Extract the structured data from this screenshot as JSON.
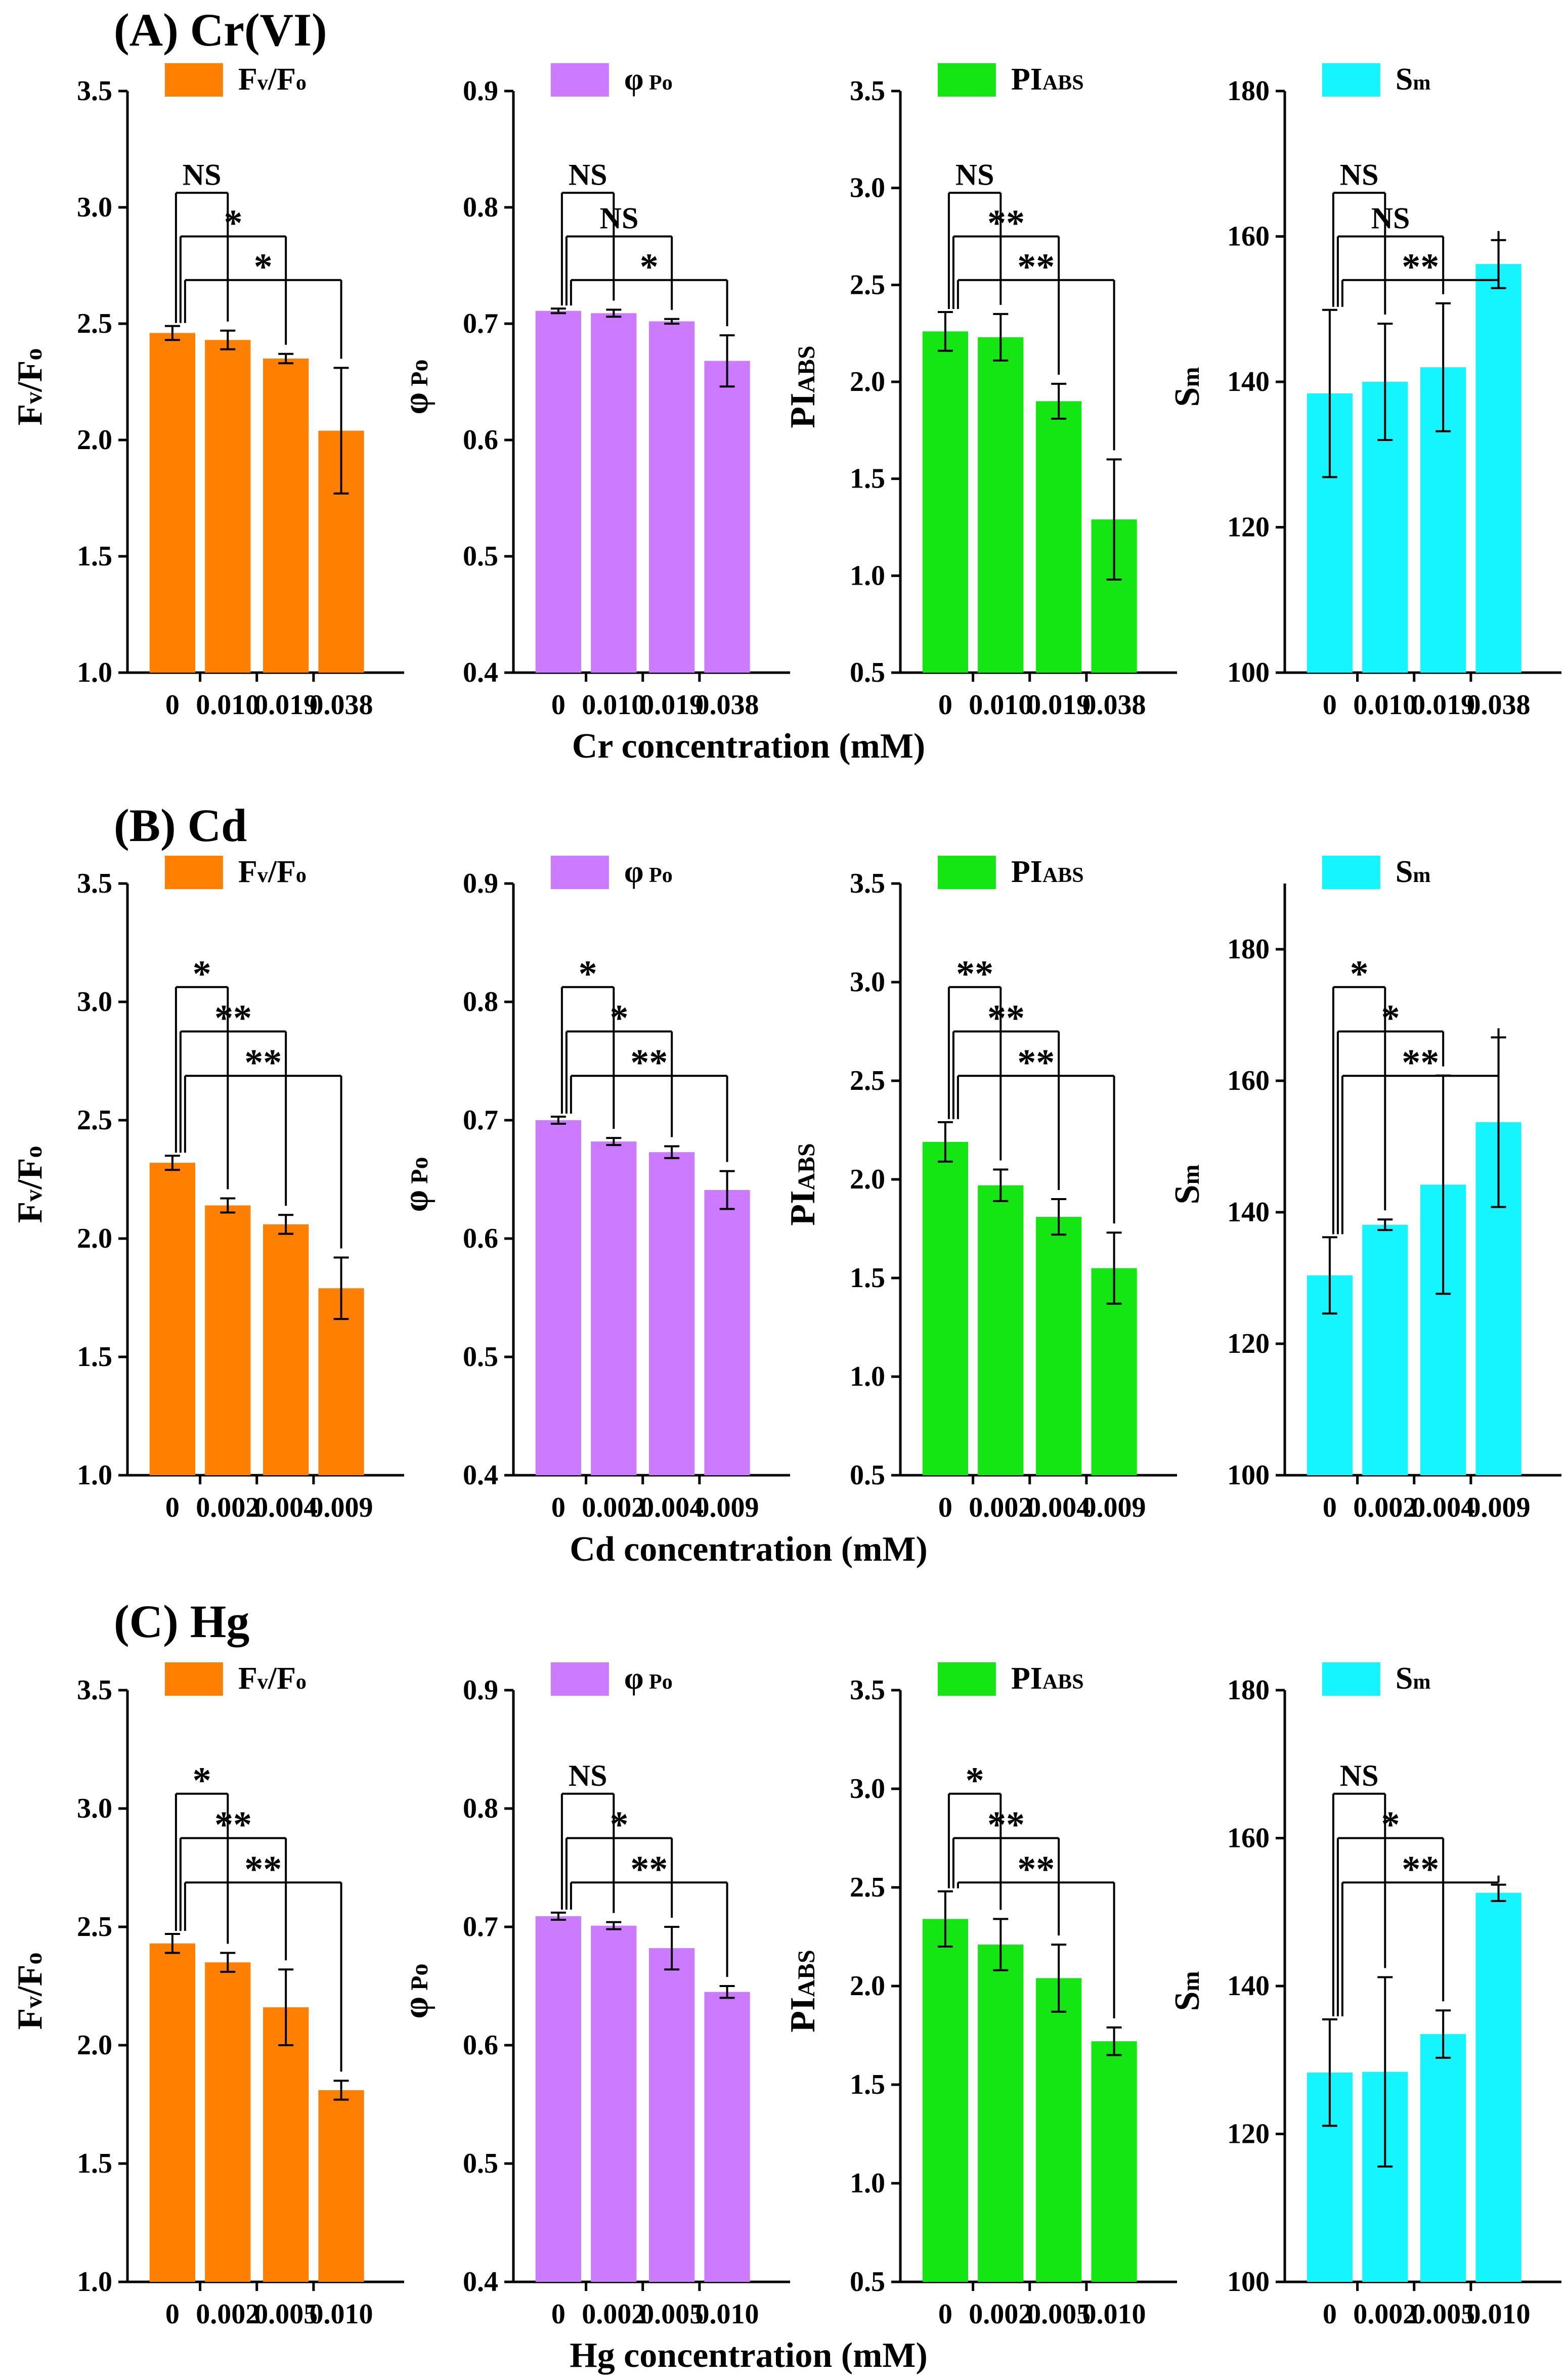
{
  "colors": {
    "fvfo": "#FF7F00",
    "phipo": "#CC7AFF",
    "piabs": "#14E614",
    "sm": "#14F5FF",
    "ink": "#000000"
  },
  "rows": [
    {
      "title": "(A) Cr(VI)",
      "xlabel": "Cr concentration (mM)",
      "categories": [
        "0",
        "0.010",
        "0.019",
        "0.038"
      ]
    },
    {
      "title": "(B) Cd",
      "xlabel": "Cd concentration (mM)",
      "categories": [
        "0",
        "0.002",
        "0.004",
        "0.009"
      ]
    },
    {
      "title": "(C) Hg",
      "xlabel": "Hg concentration (mM)",
      "categories": [
        "0",
        "0.002",
        "0.005",
        "0.010"
      ]
    }
  ],
  "chart_data": [
    {
      "type": "bar",
      "row": 0,
      "col": 0,
      "series_key": "fvfo",
      "legend": "Fv/Fo",
      "ylabel": "Fv/Fo",
      "ylim": [
        1.0,
        3.5
      ],
      "yticks": [
        "1.0",
        "1.5",
        "2.0",
        "2.5",
        "3.0",
        "3.5"
      ],
      "categories": [
        "0",
        "0.010",
        "0.019",
        "0.038"
      ],
      "values": [
        2.46,
        2.43,
        2.35,
        2.04
      ],
      "errors": [
        0.03,
        0.04,
        0.02,
        0.27
      ],
      "significance": [
        {
          "to": 1,
          "label": "NS"
        },
        {
          "to": 2,
          "label": "*"
        },
        {
          "to": 3,
          "label": "*"
        }
      ]
    },
    {
      "type": "bar",
      "row": 0,
      "col": 1,
      "series_key": "phipo",
      "legend": "φ Po",
      "ylabel": "φ Po",
      "ylim": [
        0.4,
        0.9
      ],
      "yticks": [
        "0.4",
        "0.5",
        "0.6",
        "0.7",
        "0.8",
        "0.9"
      ],
      "categories": [
        "0",
        "0.010",
        "0.019",
        "0.038"
      ],
      "values": [
        0.711,
        0.709,
        0.702,
        0.668
      ],
      "errors": [
        0.002,
        0.003,
        0.002,
        0.022
      ],
      "significance": [
        {
          "to": 1,
          "label": "NS"
        },
        {
          "to": 2,
          "label": "NS"
        },
        {
          "to": 3,
          "label": "*"
        }
      ]
    },
    {
      "type": "bar",
      "row": 0,
      "col": 2,
      "series_key": "piabs",
      "legend": "PIABS",
      "ylabel": "PIABS",
      "ylim": [
        0.5,
        3.5
      ],
      "yticks": [
        "0.5",
        "1.0",
        "1.5",
        "2.0",
        "2.5",
        "3.0",
        "3.5"
      ],
      "categories": [
        "0",
        "0.010",
        "0.019",
        "0.038"
      ],
      "values": [
        2.26,
        2.23,
        1.9,
        1.29
      ],
      "errors": [
        0.1,
        0.12,
        0.09,
        0.31
      ],
      "significance": [
        {
          "to": 1,
          "label": "NS"
        },
        {
          "to": 2,
          "label": "**"
        },
        {
          "to": 3,
          "label": "**"
        }
      ]
    },
    {
      "type": "bar",
      "row": 0,
      "col": 3,
      "series_key": "sm",
      "legend": "Sm",
      "ylabel": "Sm",
      "ylim": [
        100,
        180
      ],
      "yticks": [
        "100",
        "120",
        "140",
        "160",
        "180"
      ],
      "categories": [
        "0",
        "0.010",
        "0.019",
        "0.038"
      ],
      "values": [
        138.4,
        140.0,
        142.0,
        156.2
      ],
      "errors": [
        11.5,
        8.0,
        8.8,
        3.3
      ],
      "significance": [
        {
          "to": 1,
          "label": "NS"
        },
        {
          "to": 2,
          "label": "NS"
        },
        {
          "to": 3,
          "label": "**"
        }
      ]
    },
    {
      "type": "bar",
      "row": 1,
      "col": 0,
      "series_key": "fvfo",
      "legend": "Fv/Fo",
      "ylabel": "Fv/Fo",
      "ylim": [
        1.0,
        3.5
      ],
      "yticks": [
        "1.0",
        "1.5",
        "2.0",
        "2.5",
        "3.0",
        "3.5"
      ],
      "categories": [
        "0",
        "0.002",
        "0.004",
        "0.009"
      ],
      "values": [
        2.32,
        2.14,
        2.06,
        1.79
      ],
      "errors": [
        0.03,
        0.03,
        0.04,
        0.13
      ],
      "significance": [
        {
          "to": 1,
          "label": "*"
        },
        {
          "to": 2,
          "label": "**"
        },
        {
          "to": 3,
          "label": "**"
        }
      ]
    },
    {
      "type": "bar",
      "row": 1,
      "col": 1,
      "series_key": "phipo",
      "legend": "φ Po",
      "ylabel": "φ Po",
      "ylim": [
        0.4,
        0.9
      ],
      "yticks": [
        "0.4",
        "0.5",
        "0.6",
        "0.7",
        "0.8",
        "0.9"
      ],
      "categories": [
        "0",
        "0.002",
        "0.004",
        "0.009"
      ],
      "values": [
        0.7,
        0.682,
        0.673,
        0.641
      ],
      "errors": [
        0.003,
        0.003,
        0.005,
        0.016
      ],
      "significance": [
        {
          "to": 1,
          "label": "*"
        },
        {
          "to": 2,
          "label": "*"
        },
        {
          "to": 3,
          "label": "**"
        }
      ]
    },
    {
      "type": "bar",
      "row": 1,
      "col": 2,
      "series_key": "piabs",
      "legend": "PIABS",
      "ylabel": "PIABS",
      "ylim": [
        0.5,
        3.5
      ],
      "yticks": [
        "0.5",
        "1.0",
        "1.5",
        "2.0",
        "2.5",
        "3.0",
        "3.5"
      ],
      "categories": [
        "0",
        "0.002",
        "0.004",
        "0.009"
      ],
      "values": [
        2.19,
        1.97,
        1.81,
        1.55
      ],
      "errors": [
        0.1,
        0.08,
        0.09,
        0.18
      ],
      "significance": [
        {
          "to": 1,
          "label": "**"
        },
        {
          "to": 2,
          "label": "**"
        },
        {
          "to": 3,
          "label": "**"
        }
      ]
    },
    {
      "type": "bar",
      "row": 1,
      "col": 3,
      "series_key": "sm",
      "legend": "Sm",
      "ylabel": "Sm",
      "ylim": [
        100,
        190
      ],
      "yticks": [
        "100",
        "120",
        "140",
        "160",
        "180"
      ],
      "categories": [
        "0",
        "0.002",
        "0.004",
        "0.009"
      ],
      "values": [
        130.4,
        138.1,
        144.2,
        153.7
      ],
      "errors": [
        5.8,
        0.8,
        16.6,
        12.9
      ],
      "significance": [
        {
          "to": 1,
          "label": "*"
        },
        {
          "to": 2,
          "label": "*"
        },
        {
          "to": 3,
          "label": "**"
        }
      ]
    },
    {
      "type": "bar",
      "row": 2,
      "col": 0,
      "series_key": "fvfo",
      "legend": "Fv/Fo",
      "ylabel": "Fv/Fo",
      "ylim": [
        1.0,
        3.5
      ],
      "yticks": [
        "1.0",
        "1.5",
        "2.0",
        "2.5",
        "3.0",
        "3.5"
      ],
      "categories": [
        "0",
        "0.002",
        "0.005",
        "0.010"
      ],
      "values": [
        2.43,
        2.35,
        2.16,
        1.81
      ],
      "errors": [
        0.04,
        0.04,
        0.16,
        0.04
      ],
      "significance": [
        {
          "to": 1,
          "label": "*"
        },
        {
          "to": 2,
          "label": "**"
        },
        {
          "to": 3,
          "label": "**"
        }
      ]
    },
    {
      "type": "bar",
      "row": 2,
      "col": 1,
      "series_key": "phipo",
      "legend": "φ Po",
      "ylabel": "φ Po",
      "ylim": [
        0.4,
        0.9
      ],
      "yticks": [
        "0.4",
        "0.5",
        "0.6",
        "0.7",
        "0.8",
        "0.9"
      ],
      "categories": [
        "0",
        "0.002",
        "0.005",
        "0.010"
      ],
      "values": [
        0.709,
        0.701,
        0.682,
        0.645
      ],
      "errors": [
        0.003,
        0.003,
        0.018,
        0.005
      ],
      "significance": [
        {
          "to": 1,
          "label": "NS"
        },
        {
          "to": 2,
          "label": "*"
        },
        {
          "to": 3,
          "label": "**"
        }
      ]
    },
    {
      "type": "bar",
      "row": 2,
      "col": 2,
      "series_key": "piabs",
      "legend": "PIABS",
      "ylabel": "PIABS",
      "ylim": [
        0.5,
        3.5
      ],
      "yticks": [
        "0.5",
        "1.0",
        "1.5",
        "2.0",
        "2.5",
        "3.0",
        "3.5"
      ],
      "categories": [
        "0",
        "0.002",
        "0.005",
        "0.010"
      ],
      "values": [
        2.34,
        2.21,
        2.04,
        1.72
      ],
      "errors": [
        0.14,
        0.13,
        0.17,
        0.07
      ],
      "significance": [
        {
          "to": 1,
          "label": "*"
        },
        {
          "to": 2,
          "label": "**"
        },
        {
          "to": 3,
          "label": "**"
        }
      ]
    },
    {
      "type": "bar",
      "row": 2,
      "col": 3,
      "series_key": "sm",
      "legend": "Sm",
      "ylabel": "Sm",
      "ylim": [
        100,
        180
      ],
      "yticks": [
        "100",
        "120",
        "140",
        "160",
        "180"
      ],
      "categories": [
        "0",
        "0.002",
        "0.005",
        "0.010"
      ],
      "values": [
        128.3,
        128.4,
        133.5,
        152.6
      ],
      "errors": [
        7.2,
        12.8,
        3.2,
        1.1
      ],
      "significance": [
        {
          "to": 1,
          "label": "NS"
        },
        {
          "to": 2,
          "label": "*"
        },
        {
          "to": 3,
          "label": "**"
        }
      ]
    }
  ]
}
